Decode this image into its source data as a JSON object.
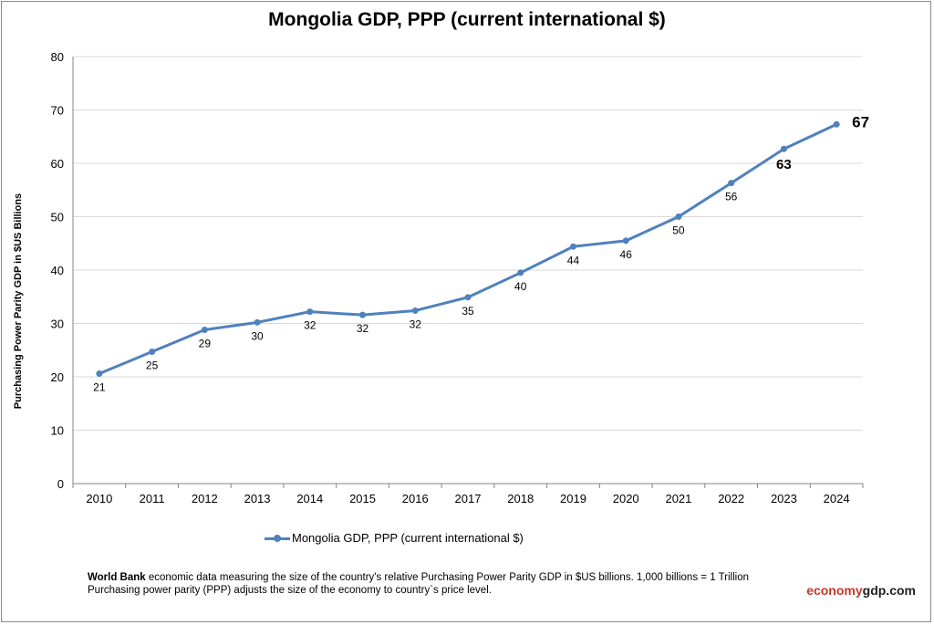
{
  "chart_data": {
    "type": "line",
    "title": "Mongolia GDP, PPP (current international $)",
    "ylabel": "Purchasing Power Parity GDP in $US Billions",
    "xlabel": "",
    "x": [
      "2010",
      "2011",
      "2012",
      "2013",
      "2014",
      "2015",
      "2016",
      "2017",
      "2018",
      "2019",
      "2020",
      "2021",
      "2022",
      "2023",
      "2024"
    ],
    "series": [
      {
        "name": "Mongolia GDP, PPP (current international $)",
        "values": [
          20.6,
          24.7,
          28.8,
          30.2,
          32.2,
          31.6,
          32.4,
          34.9,
          39.5,
          44.4,
          45.5,
          50.0,
          56.3,
          62.7,
          67.3
        ],
        "labels": [
          "21",
          "25",
          "29",
          "30",
          "32",
          "32",
          "32",
          "35",
          "40",
          "44",
          "46",
          "50",
          "56",
          "63",
          "67"
        ],
        "color": "#4f81bd"
      }
    ],
    "ylim": [
      0,
      80
    ],
    "yticks": [
      "0",
      "10",
      "20",
      "30",
      "40",
      "50",
      "60",
      "70",
      "80"
    ],
    "grid": true,
    "legend": "bottom"
  },
  "footnote": {
    "bold": "World Bank",
    "line1": " economic data  measuring the size of the country's relative  Purchasing Power Parity GDP in $US billions. 1,000 billions = 1 Trillion",
    "line2": "Purchasing power parity (PPP) adjusts the size of the economy to country`s price level."
  },
  "brand": {
    "part1": "economy",
    "part2": "gdp.com"
  }
}
